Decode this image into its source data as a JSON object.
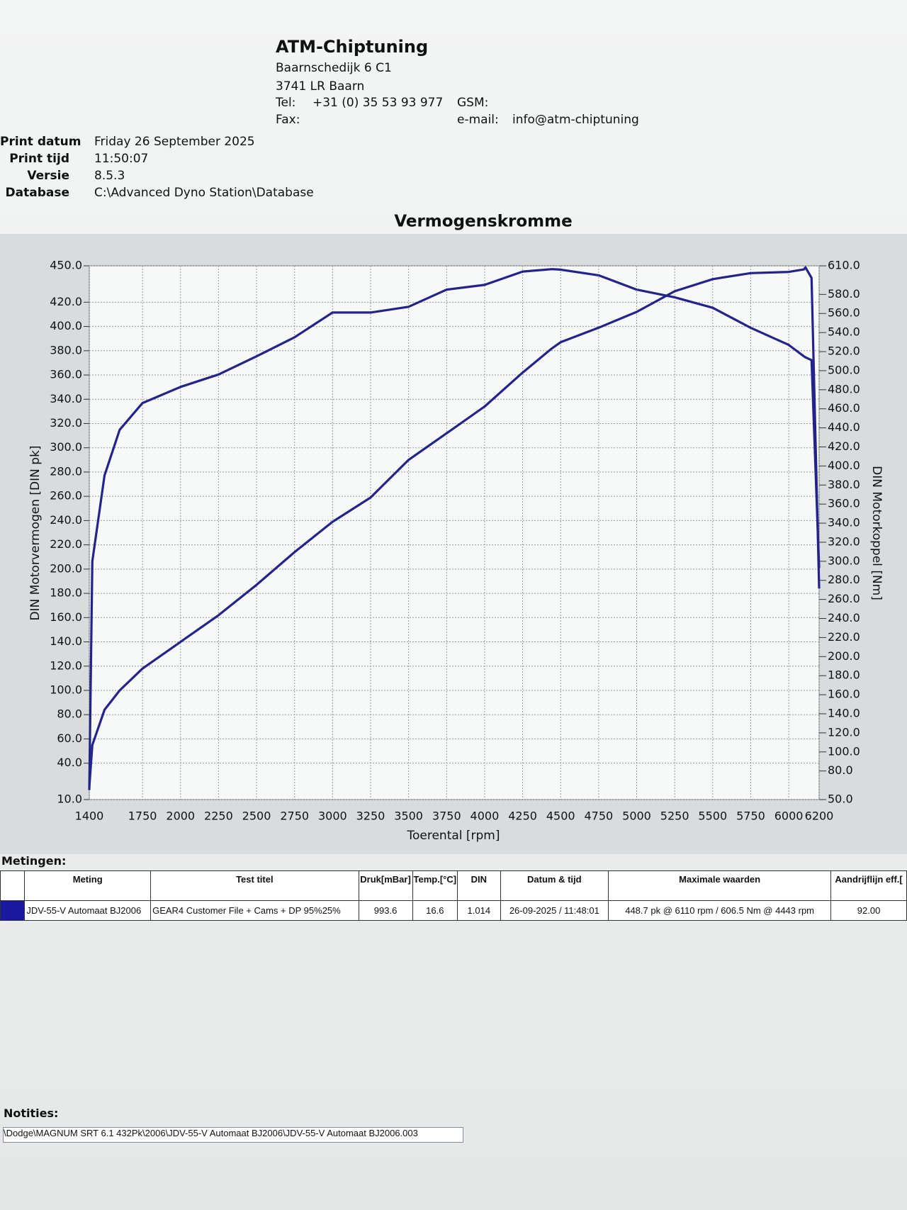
{
  "header": {
    "company": "ATM-Chiptuning",
    "address_1": "Baarnschedijk 6 C1",
    "address_2": "3741 LR Baarn",
    "tel_label": "Tel:",
    "tel": "+31 (0) 35 53 93 977",
    "gsm_label": "GSM:",
    "fax_label": "Fax:",
    "email_label": "e-mail:",
    "email": "info@atm-chiptuning"
  },
  "print_info": {
    "rows": [
      [
        "Print datum",
        "Friday 26 September 2025"
      ],
      [
        "Print tijd",
        "11:50:07"
      ],
      [
        "Versie",
        "8.5.3"
      ],
      [
        "Database",
        "C:\\Advanced Dyno Station\\Database"
      ]
    ]
  },
  "chart_data": {
    "type": "line",
    "title": "Vermogenskromme",
    "x_label": "Toerental [rpm]",
    "y_label": "DIN Motorvermogen [DIN pk]",
    "y2_label": "DIN Motorkoppel [Nm]",
    "grid": true,
    "x": [
      1400,
      1420,
      1500,
      1600,
      1750,
      2000,
      2250,
      2500,
      2750,
      3000,
      3250,
      3500,
      3750,
      4000,
      4250,
      4443,
      4500,
      4750,
      5000,
      5250,
      5500,
      5750,
      6000,
      6100,
      6110,
      6150,
      6200
    ],
    "series": [
      {
        "color": "#23238e",
        "values": [
          20,
          55,
          84,
          100,
          118,
          140,
          162,
          187,
          214,
          239,
          259,
          290,
          312,
          334,
          362,
          382,
          387,
          399,
          412,
          429,
          439,
          444,
          445,
          447,
          448.7,
          440,
          184
        ]
      },
      {
        "color": "#23238e",
        "axis": "y2",
        "values": [
          60,
          300,
          390,
          438,
          466,
          483,
          496,
          515,
          535,
          561,
          561,
          567,
          585,
          590,
          604,
          606.5,
          606,
          600,
          585,
          577,
          566,
          545,
          527,
          515,
          514,
          511,
          293
        ]
      }
    ],
    "xlim": [
      1400,
      6200
    ],
    "xticks": [
      1400,
      1750,
      2000,
      2250,
      2500,
      2750,
      3000,
      3250,
      3500,
      3750,
      4000,
      4250,
      4500,
      4750,
      5000,
      5250,
      5500,
      5750,
      6000,
      6200
    ],
    "ylim": [
      10,
      450
    ],
    "yticks": [
      {
        "value": 450,
        "label": "450.0"
      },
      {
        "value": 420,
        "label": "420.0"
      },
      {
        "value": 400,
        "label": "400.0"
      },
      {
        "value": 380,
        "label": "380.0"
      },
      {
        "value": 360,
        "label": "360.0"
      },
      {
        "value": 340,
        "label": "340.0"
      },
      {
        "value": 320,
        "label": "320.0"
      },
      {
        "value": 300,
        "label": "300.0"
      },
      {
        "value": 280,
        "label": "280.0"
      },
      {
        "value": 260,
        "label": "260.0"
      },
      {
        "value": 240,
        "label": "240.0"
      },
      {
        "value": 220,
        "label": "220.0"
      },
      {
        "value": 200,
        "label": "200.0"
      },
      {
        "value": 180,
        "label": "180.0"
      },
      {
        "value": 160,
        "label": "160.0"
      },
      {
        "value": 140,
        "label": "140.0"
      },
      {
        "value": 120,
        "label": "120.0"
      },
      {
        "value": 100,
        "label": "100.0"
      },
      {
        "value": 80,
        "label": "80.0"
      },
      {
        "value": 60,
        "label": "60.0"
      },
      {
        "value": 40,
        "label": "40.0"
      },
      {
        "value": 10,
        "label": "10.0"
      }
    ],
    "y2lim": [
      50,
      610
    ],
    "y2ticks": [
      {
        "value": 610,
        "label": "610.0"
      },
      {
        "value": 580,
        "label": "580.0"
      },
      {
        "value": 560,
        "label": "560.0"
      },
      {
        "value": 540,
        "label": "540.0"
      },
      {
        "value": 520,
        "label": "520.0"
      },
      {
        "value": 500,
        "label": "500.0"
      },
      {
        "value": 480,
        "label": "480.0"
      },
      {
        "value": 460,
        "label": "460.0"
      },
      {
        "value": 440,
        "label": "440.0"
      },
      {
        "value": 420,
        "label": "420.0"
      },
      {
        "value": 400,
        "label": "400.0"
      },
      {
        "value": 380,
        "label": "380.0"
      },
      {
        "value": 360,
        "label": "360.0"
      },
      {
        "value": 340,
        "label": "340.0"
      },
      {
        "value": 320,
        "label": "320.0"
      },
      {
        "value": 300,
        "label": "300.0"
      },
      {
        "value": 280,
        "label": "280.0"
      },
      {
        "value": 260,
        "label": "260.0"
      },
      {
        "value": 240,
        "label": "240.0"
      },
      {
        "value": 220,
        "label": "220.0"
      },
      {
        "value": 200,
        "label": "200.0"
      },
      {
        "value": 180,
        "label": "180.0"
      },
      {
        "value": 160,
        "label": "160.0"
      },
      {
        "value": 140,
        "label": "140.0"
      },
      {
        "value": 120,
        "label": "120.0"
      },
      {
        "value": 100,
        "label": "100.0"
      },
      {
        "value": 80,
        "label": "80.0"
      },
      {
        "value": 50,
        "label": "50.0"
      }
    ]
  },
  "table": {
    "title": "Metingen:",
    "columns": [
      "Meting",
      "Test titel",
      "Druk[mBar]",
      "Temp.[°C]",
      "DIN",
      "Datum & tijd",
      "Maximale waarden",
      "Aandrijflijn eff.["
    ],
    "rows": [
      [
        "JDV-55-V  Automaat BJ2006",
        "GEAR4 Customer File + Cams + DP  95%25%",
        "993.6",
        "16.6",
        "1.014",
        "26-09-2025 / 11:48:01",
        "448.7 pk @ 6110 rpm / 606.5 Nm @ 4443 rpm",
        "92.00"
      ]
    ]
  },
  "notes": {
    "title": "Notities:",
    "text": "\\Dodge\\MAGNUM SRT 6.1 432Pk\\2006\\JDV-55-V  Automaat BJ2006\\JDV-55-V  Automaat BJ2006.003"
  }
}
